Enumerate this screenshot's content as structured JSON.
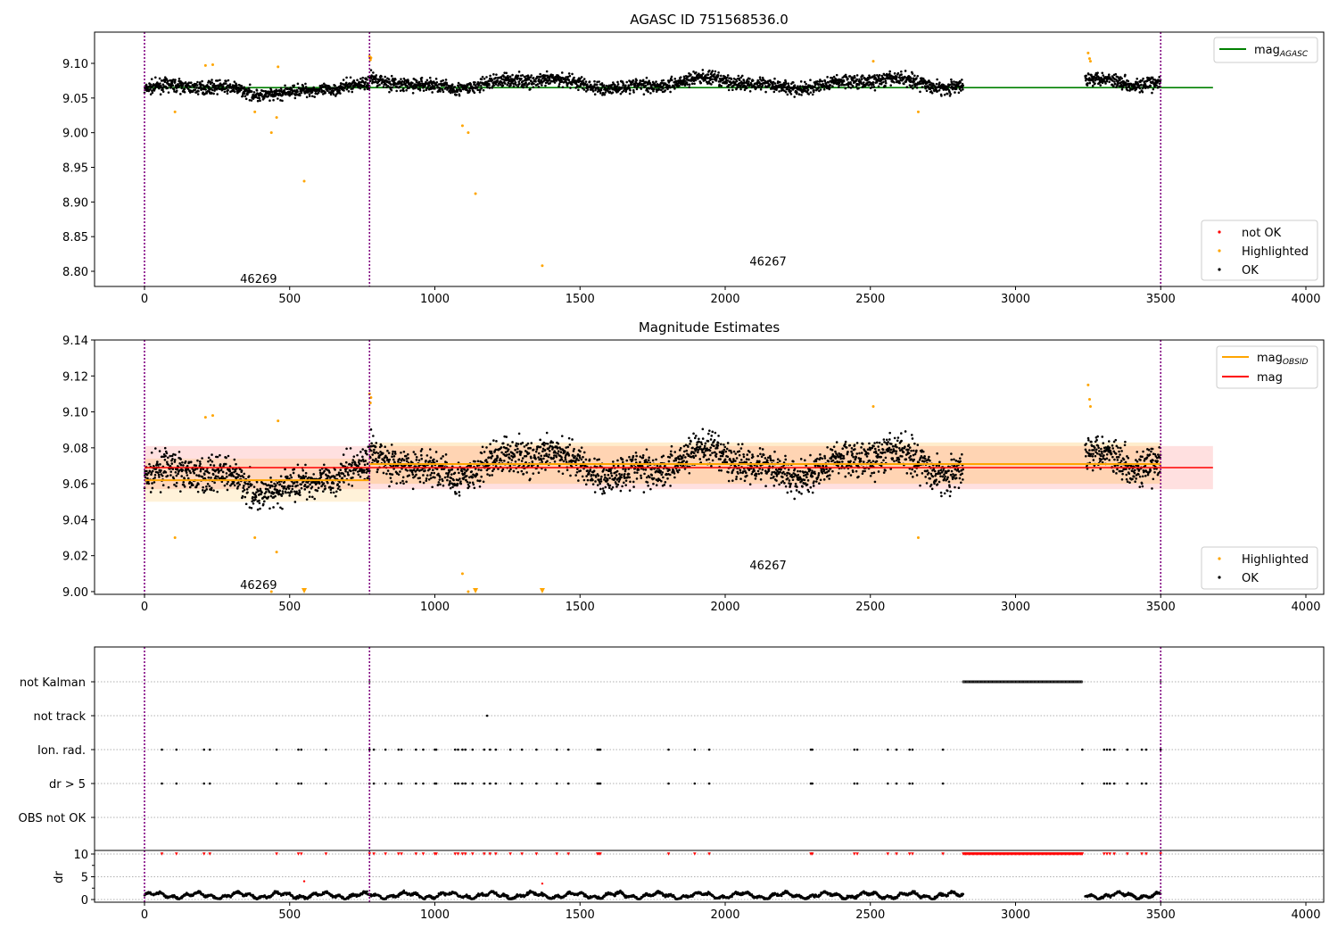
{
  "chart_data": [
    {
      "type": "scatter",
      "title": "AGASC ID 751568536.0",
      "xlim": [
        -175,
        4060
      ],
      "ylim": [
        8.776,
        9.143
      ],
      "xticks": [
        0,
        500,
        1000,
        1500,
        2000,
        2500,
        3000,
        3500,
        4000
      ],
      "yticks": [
        8.8,
        8.85,
        8.9,
        8.95,
        9.0,
        9.05,
        9.1
      ],
      "ytick_labels": [
        "8.80",
        "8.85",
        "8.90",
        "8.95",
        "9.00",
        "9.05",
        "9.10"
      ],
      "xtick_labels": [
        "0",
        "500",
        "1000",
        "1500",
        "2000",
        "2500",
        "3000",
        "3500",
        "4000"
      ],
      "hline": {
        "name": "mag_AGASC",
        "value": 9.065,
        "x": [
          0,
          3680
        ],
        "color": "#008000"
      },
      "legend_line": {
        "label": "mag",
        "sub": "AGASC"
      },
      "legend_points": [
        "not OK",
        "Highlighted",
        "OK"
      ],
      "annotations": [
        {
          "text": "46269",
          "x": 320,
          "y": 8.79
        },
        {
          "text": "46267",
          "x": 2075,
          "y": 8.815
        }
      ]
    },
    {
      "type": "scatter",
      "title": "Magnitude Estimates",
      "xlim": [
        -175,
        4060
      ],
      "ylim": [
        8.999,
        9.14
      ],
      "xticks": [
        0,
        500,
        1000,
        1500,
        2000,
        2500,
        3000,
        3500,
        4000
      ],
      "xtick_labels": [
        "0",
        "500",
        "1000",
        "1500",
        "2000",
        "2500",
        "3000",
        "3500",
        "4000"
      ],
      "yticks": [
        9.0,
        9.02,
        9.04,
        9.06,
        9.08,
        9.1,
        9.12,
        9.14
      ],
      "ytick_labels": [
        "9.00",
        "9.02",
        "9.04",
        "9.06",
        "9.08",
        "9.10",
        "9.12",
        "9.14"
      ],
      "mag": {
        "value": 9.069,
        "band": [
          9.057,
          9.081
        ],
        "x": [
          0,
          3680
        ]
      },
      "mag_obsid": [
        {
          "obsid": "46269",
          "x": [
            0,
            775
          ],
          "value": 9.062,
          "band": [
            9.05,
            9.074
          ]
        },
        {
          "obsid": "46267",
          "x": [
            775,
            3500
          ],
          "value": 9.071,
          "band": [
            9.06,
            9.083
          ]
        }
      ],
      "legend_lines": [
        {
          "label": "mag",
          "sub": "OBSID"
        },
        {
          "label": "mag",
          "sub": ""
        }
      ],
      "legend_points": [
        "Highlighted",
        "OK"
      ],
      "annotations": [
        {
          "text": "46269",
          "x": 320,
          "y": 9.004
        },
        {
          "text": "46267",
          "x": 2075,
          "y": 9.015
        }
      ]
    },
    {
      "type": "scatter",
      "title": "",
      "categories": [
        "not Kalman",
        "not track",
        "Ion. rad.",
        "dr > 5",
        "OBS not OK"
      ],
      "dr_ylabel": "dr",
      "dr_yticks": [
        0,
        5,
        10
      ],
      "dr_ytick_labels": [
        "0",
        "5",
        "10"
      ],
      "xtick_labels": [
        "0",
        "500",
        "1000",
        "1500",
        "2000",
        "2500",
        "3000",
        "3500",
        "4000"
      ],
      "ion_rad_times": [
        60,
        110,
        205,
        225,
        455,
        530,
        540,
        625,
        775,
        790,
        830,
        875,
        885,
        935,
        960,
        1000,
        1005,
        1070,
        1080,
        1095,
        1105,
        1130,
        1170,
        1190,
        1210,
        1260,
        1300,
        1350,
        1420,
        1460,
        1560,
        1565,
        1570,
        1805,
        1895,
        1945,
        2295,
        2300,
        2445,
        2455,
        2560,
        2590,
        2635,
        2645,
        2750,
        3230,
        3305,
        3315,
        3325,
        3340,
        3385,
        3435,
        3450,
        3500
      ],
      "not_track_times": [
        1180
      ],
      "not_kalman_range": [
        2820,
        3230
      ],
      "not_kalman_extra": [
        775,
        3500
      ],
      "dr_outliers": [
        {
          "x": 550,
          "y": 4.0
        },
        {
          "x": 1370,
          "y": 3.5
        }
      ]
    }
  ],
  "observations": [
    {
      "obsid": "46269",
      "x": [
        0,
        775
      ],
      "mean": 9.062,
      "spread": 0.009
    },
    {
      "obsid": "46267",
      "x": [
        775,
        2820
      ],
      "mean": 9.071,
      "spread": 0.01
    },
    {
      "obsid": "46267",
      "x": [
        3240,
        3500
      ],
      "mean": 9.077,
      "spread": 0.01
    }
  ],
  "highlighted": [
    [
      105,
      9.03
    ],
    [
      210,
      9.097
    ],
    [
      235,
      9.098
    ],
    [
      380,
      9.03
    ],
    [
      437,
      9.0
    ],
    [
      455,
      9.022
    ],
    [
      460,
      9.095
    ],
    [
      550,
      8.93
    ],
    [
      775,
      9.11
    ],
    [
      778,
      9.105
    ],
    [
      780,
      9.108
    ],
    [
      1095,
      9.01
    ],
    [
      1115,
      9.0
    ],
    [
      1140,
      8.912
    ],
    [
      1370,
      8.808
    ],
    [
      2510,
      9.103
    ],
    [
      2665,
      9.03
    ],
    [
      3250,
      9.115
    ],
    [
      3255,
      9.107
    ],
    [
      3258,
      9.103
    ]
  ],
  "obs_boundaries": [
    0,
    775,
    3500
  ],
  "colors": {
    "ok": "#000000",
    "highlighted": "#ffa500",
    "not_ok": "#ff0000",
    "boundary": "#800080",
    "agasc": "#008000"
  }
}
